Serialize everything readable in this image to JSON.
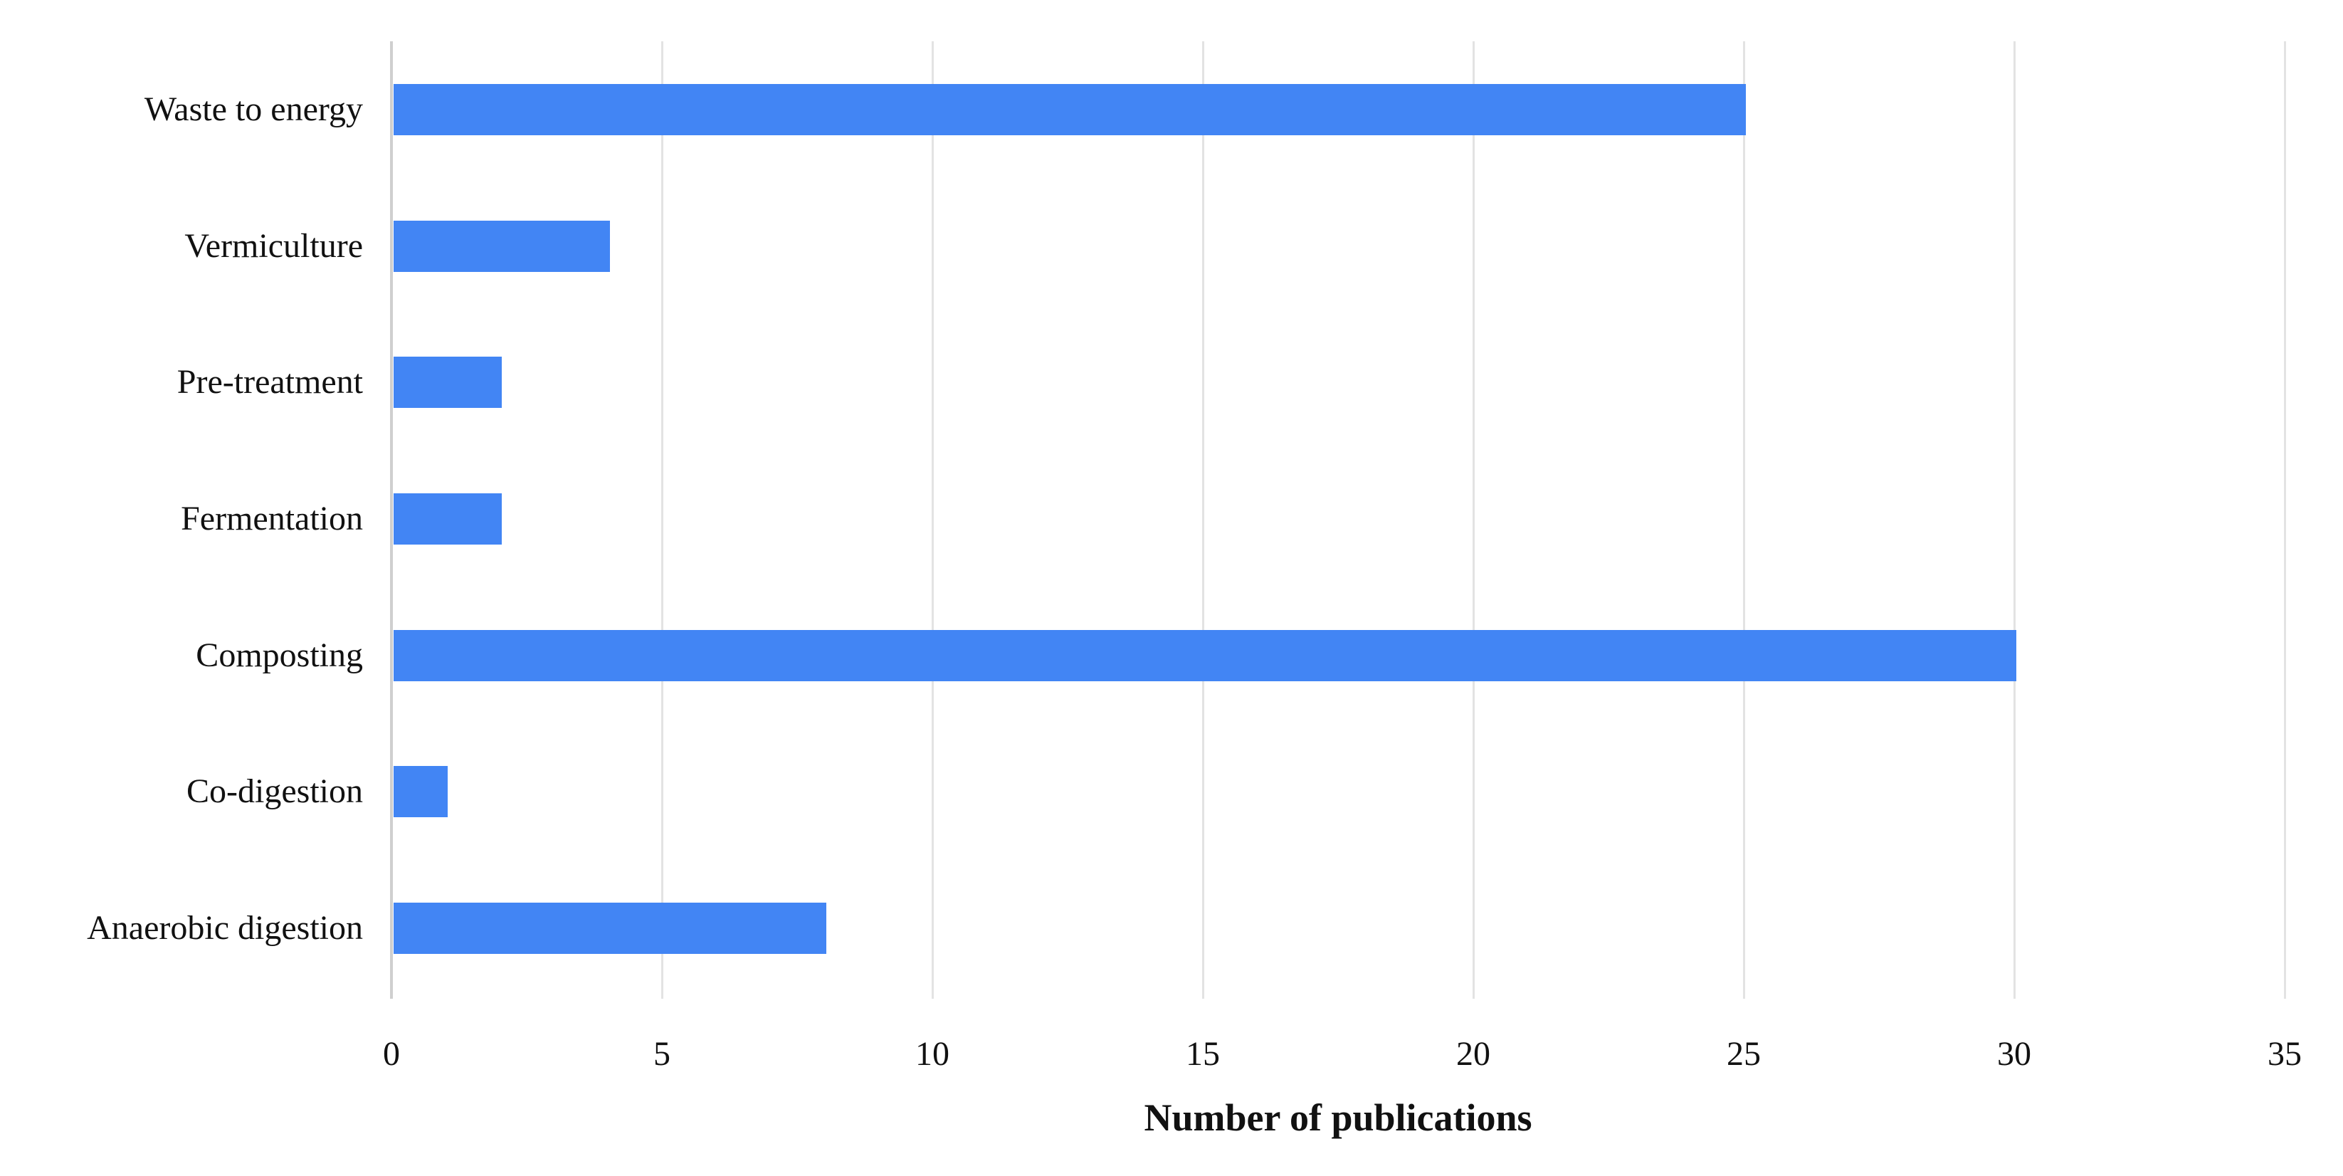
{
  "chart_data": {
    "type": "bar",
    "orientation": "horizontal",
    "categories": [
      "Waste to energy",
      "Vermiculture",
      "Pre-treatment",
      "Fermentation",
      "Composting",
      "Co-digestion",
      "Anaerobic digestion"
    ],
    "values": [
      25,
      4,
      2,
      2,
      30,
      1,
      8
    ],
    "title": "",
    "xlabel": "Number of publications",
    "ylabel": "",
    "xlim": [
      0,
      35
    ],
    "xticks": [
      0,
      5,
      10,
      15,
      20,
      25,
      30,
      35
    ],
    "grid": true,
    "legend": false,
    "bar_color": "#4285F4",
    "gridline_color": "#e3e3e3",
    "axis_line_color": "#cfcfcf",
    "text_color": "#111111"
  }
}
